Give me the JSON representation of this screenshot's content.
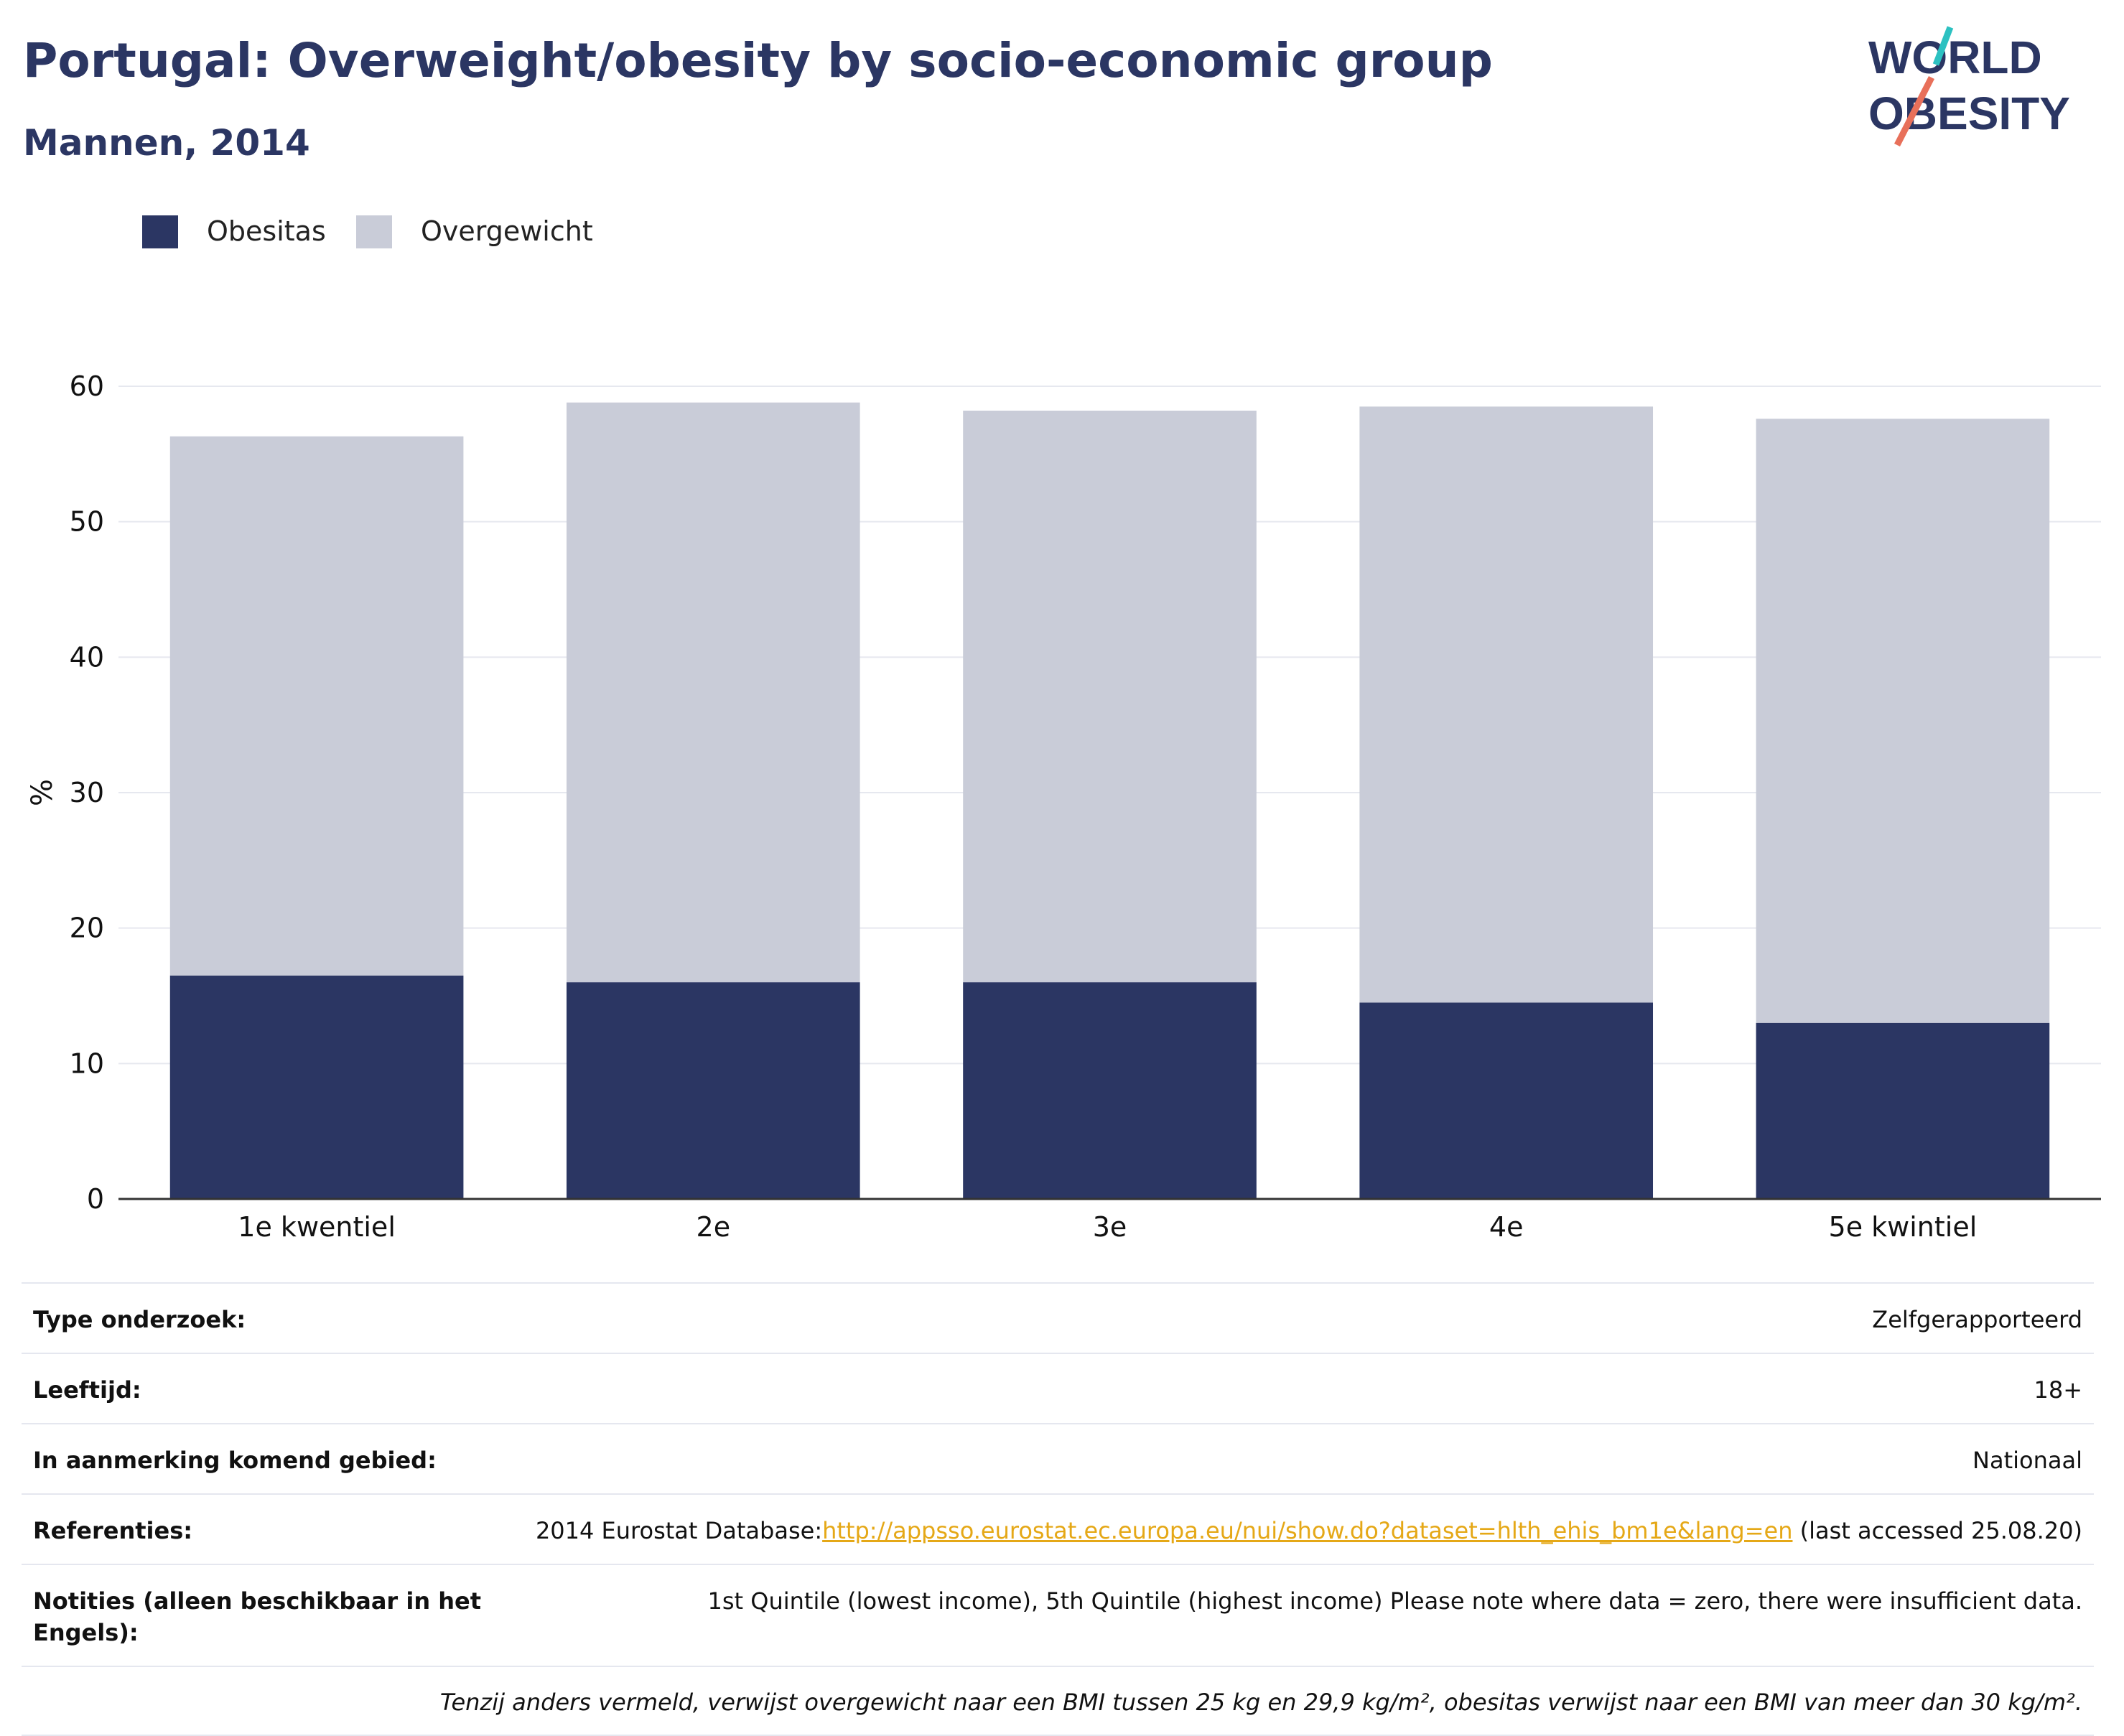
{
  "title": "Portugal: Overweight/obesity by socio-economic group",
  "subtitle": "Mannen, 2014",
  "logo": {
    "line1": "WORLD",
    "line2": "OBESITY"
  },
  "colors": {
    "obesitas": "#2b3663",
    "overgewicht": "#c9ccd8",
    "title": "#2b3663",
    "link": "#e5a817",
    "logo_teal": "#2cc1c1",
    "logo_coral": "#e8705a"
  },
  "legend": [
    {
      "label": "Obesitas"
    },
    {
      "label": "Overgewicht"
    }
  ],
  "chart_data": {
    "type": "bar",
    "stacked": true,
    "categories": [
      "1e kwentiel",
      "2e",
      "3e",
      "4e",
      "5e kwintiel"
    ],
    "series": [
      {
        "name": "Obesitas",
        "values": [
          16.5,
          16.0,
          16.0,
          14.5,
          13.0
        ]
      },
      {
        "name": "Overgewicht",
        "values": [
          39.8,
          42.8,
          42.2,
          44.0,
          44.6
        ]
      }
    ],
    "ylabel": "%",
    "ylim": [
      0,
      60
    ],
    "yticks": [
      0,
      10,
      20,
      30,
      40,
      50,
      60
    ],
    "grid": true
  },
  "info": [
    {
      "label": "Type onderzoek:",
      "value": "Zelfgerapporteerd"
    },
    {
      "label": "Leeftijd:",
      "value": "18+"
    },
    {
      "label": "In aanmerking komend gebied:",
      "value": "Nationaal"
    },
    {
      "label": "Referenties:",
      "value_prefix": "2014 Eurostat Database:",
      "link": "http://appsso.eurostat.ec.europa.eu/nui/show.do?dataset=hlth_ehis_bm1e&lang=en",
      "value_suffix": " (last accessed 25.08.20)"
    },
    {
      "label": "Notities (alleen beschikbaar in het Engels):",
      "value": "1st Quintile (lowest income), 5th Quintile (highest income) Please note where data = zero, there were insufficient data."
    }
  ],
  "footnote": "Tenzij anders vermeld, verwijst overgewicht naar een BMI tussen 25 kg en 29,9 kg/m², obesitas verwijst naar een BMI van meer dan 30 kg/m²."
}
